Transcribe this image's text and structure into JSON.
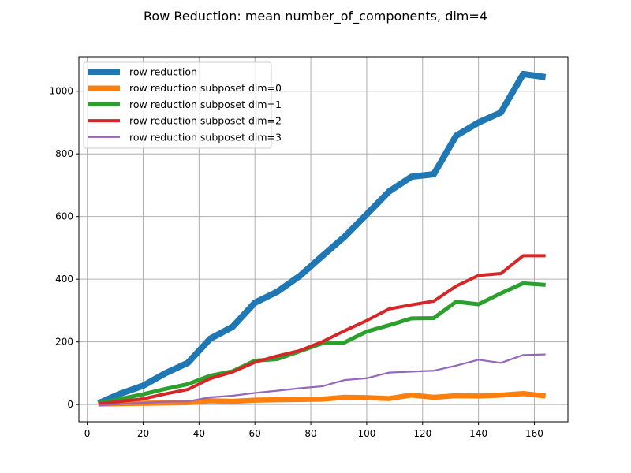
{
  "chart_data": {
    "type": "line",
    "title": "Row Reduction: mean number_of_components, dim=4",
    "xlabel": "",
    "ylabel": "",
    "xlim": [
      -3,
      172
    ],
    "ylim": [
      -55,
      1110
    ],
    "xticks": [
      0,
      20,
      40,
      60,
      80,
      100,
      120,
      140,
      160
    ],
    "yticks": [
      0,
      200,
      400,
      600,
      800,
      1000
    ],
    "grid": true,
    "legend_position": "top-left",
    "x": [
      4,
      12,
      20,
      28,
      36,
      44,
      52,
      60,
      68,
      76,
      84,
      92,
      100,
      108,
      116,
      124,
      132,
      140,
      148,
      156,
      164
    ],
    "series": [
      {
        "name": "row reduction",
        "color": "#1f77b4",
        "values": [
          4,
          35,
          60,
          100,
          133,
          210,
          248,
          325,
          360,
          410,
          473,
          535,
          607,
          680,
          727,
          735,
          858,
          900,
          932,
          1055,
          1045
        ]
      },
      {
        "name": "row reduction subposet dim=0",
        "color": "#ff7f0e",
        "values": [
          2,
          3,
          4,
          5,
          6,
          12,
          10,
          14,
          15,
          16,
          17,
          23,
          22,
          19,
          30,
          23,
          28,
          27,
          30,
          35,
          27
        ]
      },
      {
        "name": "row reduction subposet dim=1",
        "color": "#2ca02c",
        "values": [
          4,
          18,
          33,
          50,
          65,
          92,
          106,
          140,
          145,
          170,
          195,
          198,
          233,
          253,
          275,
          276,
          328,
          320,
          355,
          387,
          382
        ]
      },
      {
        "name": "row reduction subposet dim=2",
        "color": "#d62728",
        "values": [
          2,
          10,
          18,
          34,
          48,
          83,
          104,
          135,
          155,
          172,
          200,
          235,
          268,
          305,
          318,
          330,
          378,
          412,
          418,
          475,
          475
        ]
      },
      {
        "name": "row reduction subposet dim=3",
        "color": "#9467bd",
        "values": [
          -3,
          2,
          5,
          9,
          10,
          23,
          28,
          37,
          44,
          52,
          58,
          78,
          84,
          102,
          105,
          108,
          124,
          143,
          133,
          158,
          160
        ]
      }
    ]
  }
}
